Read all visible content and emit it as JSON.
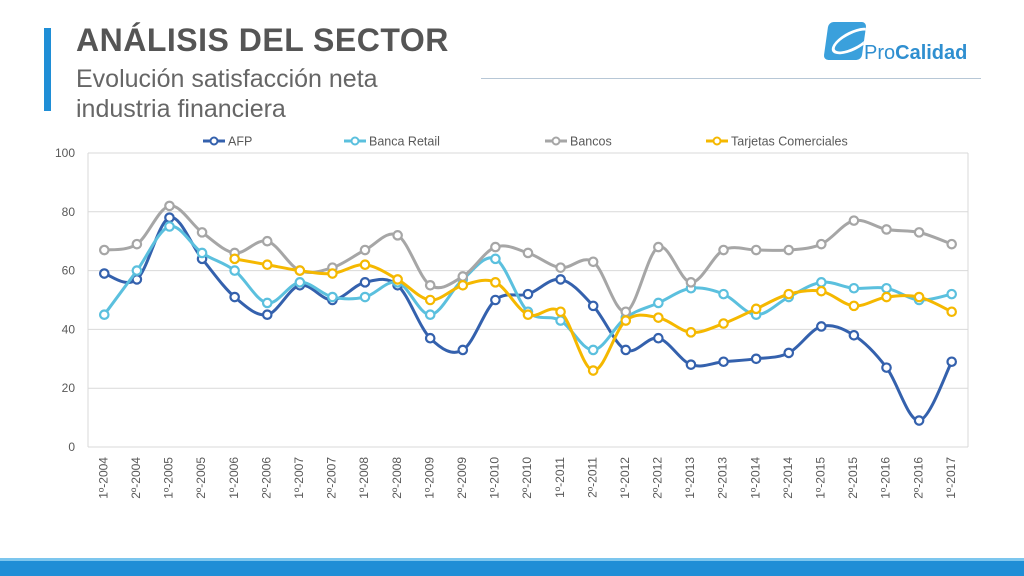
{
  "slide": {
    "title": "ANÁLISIS DEL SECTOR",
    "subtitle": "Evolución satisfacción neta industria financiera",
    "logo": {
      "text_light": "Pro",
      "text_bold": "Calidad",
      "icon": "procalidad-logo-icon"
    }
  },
  "colors": {
    "accent": "#1f8ed6",
    "AFP": "#3461ad",
    "Banca Retail": "#5bc0de",
    "Bancos": "#a6a6a6",
    "Tarjetas Comerciales": "#f5b800"
  },
  "chart_data": {
    "type": "line",
    "title": "",
    "xlabel": "",
    "ylabel": "",
    "ylim": [
      0,
      100
    ],
    "yticks": [
      0,
      20,
      40,
      60,
      80,
      100
    ],
    "grid": true,
    "legend": "top",
    "categories": [
      "1º-2004",
      "2º-2004",
      "1º-2005",
      "2º-2005",
      "1º-2006",
      "2º-2006",
      "1º-2007",
      "2º-2007",
      "1º-2008",
      "2º-2008",
      "1º-2009",
      "2º-2009",
      "1º-2010",
      "2º-2010",
      "1º-2011",
      "2º-2011",
      "1º-2012",
      "2º-2012",
      "1º-2013",
      "2º-2013",
      "1º-2014",
      "2º-2014",
      "1º-2015",
      "2º-2015",
      "1º-2016",
      "2º-2016",
      "1º-2017"
    ],
    "series": [
      {
        "name": "AFP",
        "color": "#3461ad",
        "values": [
          59,
          57,
          78,
          64,
          51,
          45,
          55,
          50,
          56,
          55,
          37,
          33,
          50,
          52,
          57,
          48,
          33,
          37,
          28,
          29,
          30,
          32,
          41,
          38,
          27,
          9,
          29
        ]
      },
      {
        "name": "Banca Retail",
        "color": "#5bc0de",
        "values": [
          45,
          60,
          75,
          66,
          60,
          49,
          56,
          51,
          51,
          56,
          45,
          57,
          64,
          46,
          43,
          33,
          44,
          49,
          54,
          52,
          45,
          51,
          56,
          54,
          54,
          50,
          52
        ]
      },
      {
        "name": "Bancos",
        "color": "#a6a6a6",
        "values": [
          67,
          69,
          82,
          73,
          66,
          70,
          60,
          61,
          67,
          72,
          55,
          58,
          68,
          66,
          61,
          63,
          46,
          68,
          56,
          67,
          67,
          67,
          69,
          77,
          74,
          73,
          69
        ]
      },
      {
        "name": "Tarjetas Comerciales",
        "color": "#f5b800",
        "values": [
          null,
          null,
          null,
          null,
          64,
          62,
          60,
          59,
          62,
          57,
          50,
          55,
          56,
          45,
          46,
          26,
          43,
          44,
          39,
          42,
          47,
          52,
          53,
          48,
          51,
          51,
          46
        ]
      }
    ]
  }
}
